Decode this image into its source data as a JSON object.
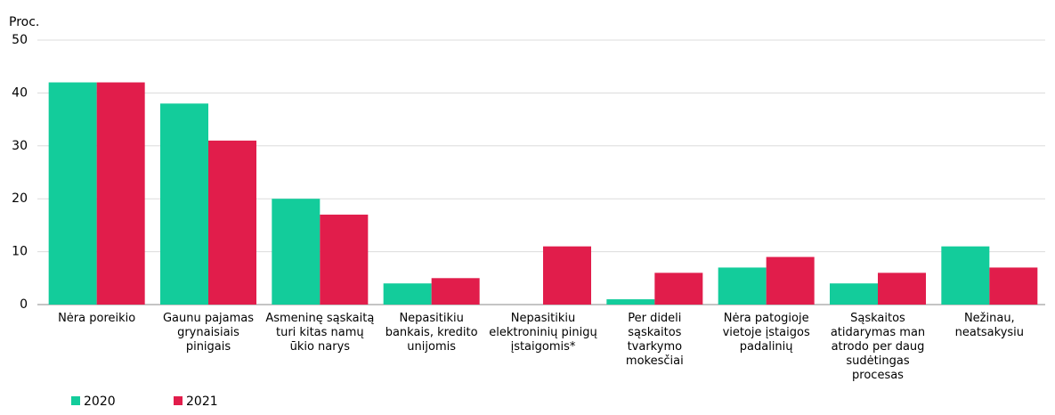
{
  "chart_data": {
    "type": "bar",
    "y_axis_label": "Proc.",
    "categories": [
      "Nėra poreikio",
      "Gaunu pajamas grynaisiais pinigais",
      "Asmeninę sąskaitą turi kitas namų ūkio narys",
      "Nepasitikiu bankais, kredito unijomis",
      "Nepasitikiu elektroninių pinigų įstaigomis*",
      "Per dideli sąskaitos tvarkymo mokesčiai",
      "Nėra patogioje vietoje įstaigos padalinių",
      "Sąskaitos atidarymas man atrodo per daug sudėtingas procesas",
      "Nežinau, neatsakysiu"
    ],
    "series": [
      {
        "name": "2020",
        "color": "#13cc9b",
        "values": [
          42,
          38,
          20,
          4,
          0,
          1,
          7,
          4,
          11
        ]
      },
      {
        "name": "2021",
        "color": "#e11d4b",
        "values": [
          42,
          31,
          17,
          5,
          11,
          6,
          9,
          6,
          7
        ]
      }
    ],
    "ylim": [
      0,
      50
    ],
    "yticks": [
      0,
      10,
      20,
      30,
      40,
      50
    ],
    "grid": true,
    "legend": "bottom-left"
  }
}
